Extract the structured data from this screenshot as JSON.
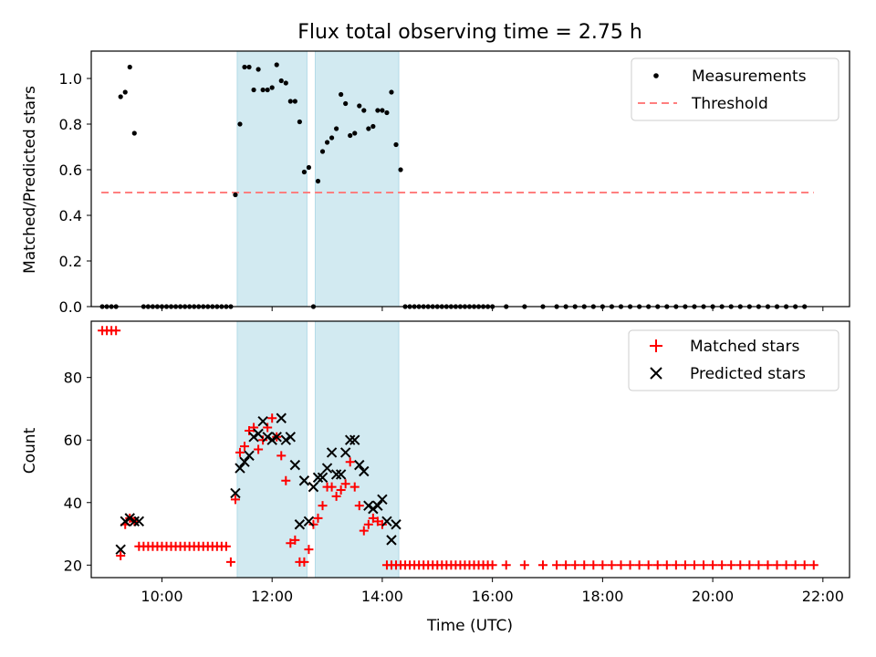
{
  "chart_data": [
    {
      "type": "scatter",
      "title": "Flux total observing time = 2.75 h",
      "xlabel": "",
      "ylabel": "Matched/Predicted stars",
      "xlim": [
        "08:43",
        "22:29"
      ],
      "ylim": [
        0,
        1.12
      ],
      "yticks": [
        "0.0",
        "0.2",
        "0.4",
        "0.6",
        "0.8",
        "1.0"
      ],
      "ytick_values": [
        0,
        0.2,
        0.4,
        0.6,
        0.8,
        1.0
      ],
      "grid": false,
      "legend_position": "top-right",
      "highlight_bands": [
        {
          "start": "11:22",
          "end": "12:38",
          "color": "#add8e6"
        },
        {
          "start": "12:47",
          "end": "14:18",
          "color": "#add8e6"
        }
      ],
      "series": [
        {
          "name": "Measurements",
          "style": "points",
          "color": "#000000",
          "x": [
            "11:20",
            "11:25",
            "11:30",
            "11:35",
            "11:40",
            "11:45",
            "11:50",
            "11:55",
            "12:00",
            "12:05",
            "12:10",
            "12:15",
            "12:20",
            "12:25",
            "12:30",
            "12:35",
            "12:40",
            "12:50",
            "12:55",
            "13:00",
            "13:05",
            "13:10",
            "13:15",
            "13:20",
            "13:25",
            "13:30",
            "13:35",
            "13:40",
            "13:45",
            "13:50",
            "13:55",
            "14:00",
            "14:05",
            "14:10",
            "14:15",
            "14:20",
            "09:15",
            "09:20",
            "09:25",
            "09:30"
          ],
          "y": [
            0.49,
            0.8,
            1.05,
            1.05,
            0.95,
            1.04,
            0.95,
            0.95,
            0.96,
            1.06,
            0.99,
            0.98,
            0.9,
            0.9,
            0.81,
            0.59,
            0.61,
            0.55,
            0.68,
            0.72,
            0.74,
            0.78,
            0.93,
            0.89,
            0.75,
            0.76,
            0.88,
            0.86,
            0.78,
            0.79,
            0.86,
            0.86,
            0.85,
            0.94,
            0.71,
            0.6,
            0.92,
            0.94,
            1.05,
            0.76
          ],
          "zeros_x": [
            "08:55",
            "09:00",
            "09:05",
            "09:10",
            "09:40",
            "09:45",
            "09:50",
            "09:55",
            "10:00",
            "10:05",
            "10:10",
            "10:15",
            "10:20",
            "10:25",
            "10:30",
            "10:35",
            "10:40",
            "10:45",
            "10:50",
            "10:55",
            "11:00",
            "11:05",
            "11:10",
            "11:15",
            "12:45",
            "14:25",
            "14:30",
            "14:35",
            "14:40",
            "14:45",
            "14:50",
            "14:55",
            "15:00",
            "15:05",
            "15:10",
            "15:15",
            "15:20",
            "15:25",
            "15:30",
            "15:35",
            "15:40",
            "15:45",
            "15:50",
            "15:55",
            "16:00",
            "16:15",
            "16:35",
            "16:55",
            "17:10",
            "17:20",
            "17:30",
            "17:40",
            "17:50",
            "18:00",
            "18:10",
            "18:20",
            "18:30",
            "18:40",
            "18:50",
            "19:00",
            "19:10",
            "19:20",
            "19:30",
            "19:40",
            "19:50",
            "20:00",
            "20:10",
            "20:20",
            "20:30",
            "20:40",
            "20:50",
            "21:00",
            "21:10",
            "21:20",
            "21:30",
            "21:40"
          ]
        },
        {
          "name": "Threshold",
          "style": "dashed-line",
          "color": "#ff7f7f",
          "x": [
            "08:54",
            "21:50"
          ],
          "y": [
            0.5,
            0.5
          ]
        }
      ]
    },
    {
      "type": "scatter",
      "title": "",
      "xlabel": "Time (UTC)",
      "ylabel": "Count",
      "xlim": [
        "08:43",
        "22:29"
      ],
      "ylim": [
        16,
        98
      ],
      "xticks": [
        "10:00",
        "12:00",
        "14:00",
        "16:00",
        "18:00",
        "20:00",
        "22:00"
      ],
      "yticks": [
        "20",
        "40",
        "60",
        "80"
      ],
      "ytick_values": [
        20,
        40,
        60,
        80
      ],
      "grid": false,
      "legend_position": "top-right",
      "highlight_bands": [
        {
          "start": "11:22",
          "end": "12:38",
          "color": "#add8e6"
        },
        {
          "start": "12:47",
          "end": "14:18",
          "color": "#add8e6"
        }
      ],
      "series": [
        {
          "name": "Matched stars",
          "marker": "plus",
          "color": "#ff0000",
          "x": [
            "08:55",
            "09:00",
            "09:05",
            "09:10",
            "09:15",
            "09:20",
            "09:25",
            "09:30",
            "09:35",
            "09:40",
            "09:45",
            "09:50",
            "09:55",
            "10:00",
            "10:05",
            "10:10",
            "10:15",
            "10:20",
            "10:25",
            "10:30",
            "10:35",
            "10:40",
            "10:45",
            "10:50",
            "10:55",
            "11:00",
            "11:05",
            "11:10",
            "11:15",
            "11:20",
            "11:25",
            "11:30",
            "11:35",
            "11:40",
            "11:45",
            "11:50",
            "11:55",
            "12:00",
            "12:05",
            "12:10",
            "12:15",
            "12:20",
            "12:25",
            "12:30",
            "12:35",
            "12:40",
            "12:45",
            "12:50",
            "12:55",
            "13:00",
            "13:05",
            "13:10",
            "13:15",
            "13:20",
            "13:25",
            "13:30",
            "13:35",
            "13:40",
            "13:45",
            "13:50",
            "13:55",
            "14:00",
            "14:05",
            "14:10",
            "14:15",
            "14:20",
            "14:25",
            "14:30",
            "14:35",
            "14:40",
            "14:45",
            "14:50",
            "14:55",
            "15:00",
            "15:05",
            "15:10",
            "15:15",
            "15:20",
            "15:25",
            "15:30",
            "15:35",
            "15:40",
            "15:45",
            "15:50",
            "15:55",
            "16:00",
            "16:15",
            "16:35",
            "16:55",
            "17:10",
            "17:20",
            "17:30",
            "17:40",
            "17:50",
            "18:00",
            "18:10",
            "18:20",
            "18:30",
            "18:40",
            "18:50",
            "19:00",
            "19:10",
            "19:20",
            "19:30",
            "19:40",
            "19:50",
            "20:00",
            "20:10",
            "20:20",
            "20:30",
            "20:40",
            "20:50",
            "21:00",
            "21:10",
            "21:20",
            "21:30",
            "21:40",
            "21:50"
          ],
          "y": [
            95,
            95,
            95,
            95,
            23,
            33,
            35,
            34,
            26,
            26,
            26,
            26,
            26,
            26,
            26,
            26,
            26,
            26,
            26,
            26,
            26,
            26,
            26,
            26,
            26,
            26,
            26,
            26,
            21,
            41,
            56,
            58,
            63,
            64,
            57,
            60,
            64,
            67,
            61,
            55,
            47,
            27,
            28,
            21,
            21,
            25,
            33,
            35,
            39,
            45,
            45,
            42,
            44,
            46,
            53,
            45,
            39,
            31,
            33,
            35,
            34,
            33,
            20,
            20,
            20,
            20,
            20,
            20,
            20,
            20,
            20,
            20,
            20,
            20,
            20,
            20,
            20,
            20,
            20,
            20,
            20,
            20,
            20,
            20,
            20,
            20,
            20,
            20,
            20,
            20,
            20,
            20,
            20,
            20,
            20,
            20,
            20,
            20,
            20,
            20,
            20,
            20,
            20,
            20,
            20,
            20,
            20,
            20,
            20,
            20,
            20,
            20,
            20,
            20,
            20,
            20,
            20,
            20
          ]
        },
        {
          "name": "Predicted stars",
          "marker": "x",
          "color": "#000000",
          "x": [
            "09:15",
            "09:20",
            "09:25",
            "09:30",
            "09:35",
            "11:20",
            "11:25",
            "11:30",
            "11:35",
            "11:40",
            "11:45",
            "11:50",
            "11:55",
            "12:00",
            "12:05",
            "12:10",
            "12:15",
            "12:20",
            "12:25",
            "12:30",
            "12:35",
            "12:40",
            "12:45",
            "12:50",
            "12:55",
            "13:00",
            "13:05",
            "13:10",
            "13:15",
            "13:20",
            "13:25",
            "13:30",
            "13:35",
            "13:40",
            "13:45",
            "13:50",
            "13:55",
            "14:00",
            "14:05",
            "14:10",
            "14:15"
          ],
          "y": [
            25,
            34,
            35,
            34,
            34,
            43,
            51,
            53,
            55,
            61,
            62,
            66,
            61,
            60,
            61,
            67,
            60,
            61,
            52,
            33,
            47,
            34,
            45,
            48,
            48,
            51,
            56,
            49,
            49,
            56,
            60,
            60,
            52,
            50,
            39,
            38,
            39,
            41,
            34,
            28,
            33
          ]
        }
      ]
    }
  ]
}
